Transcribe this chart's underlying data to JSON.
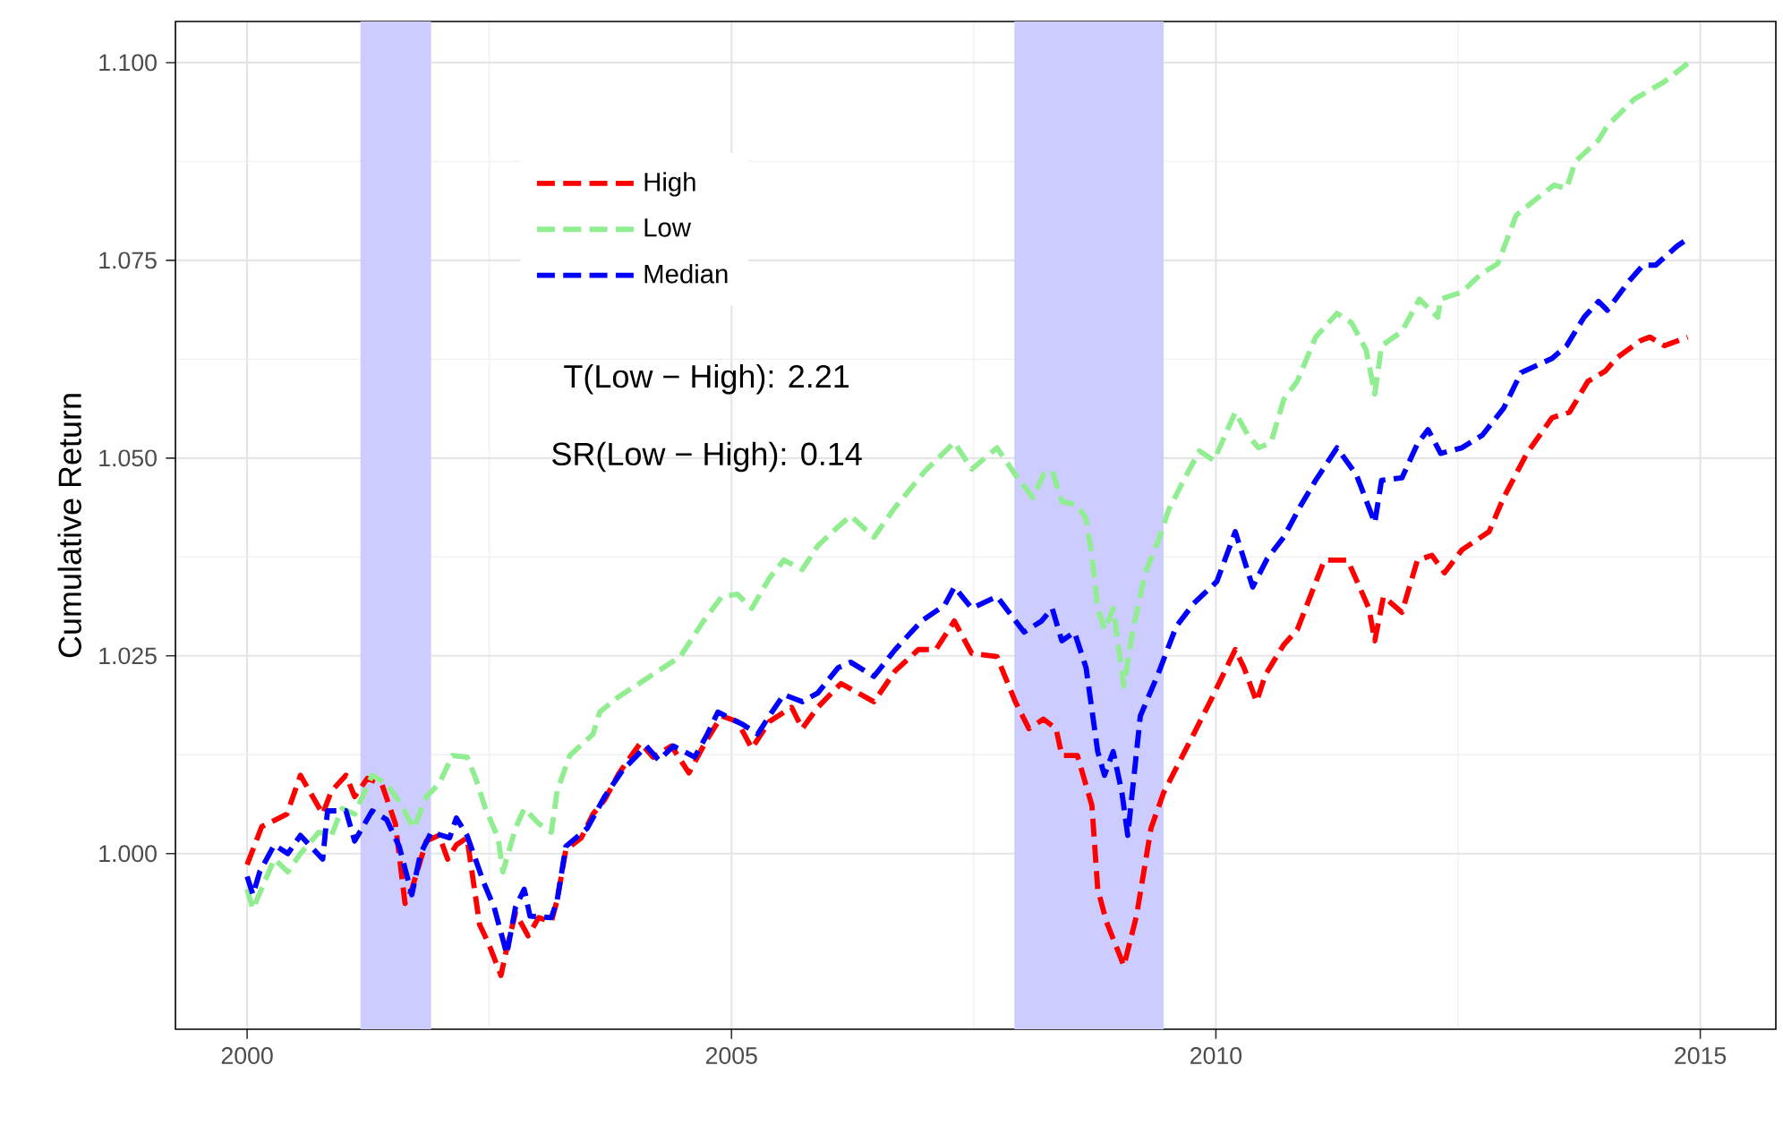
{
  "chart_data": {
    "type": "line",
    "ylabel": "Cumulative Return",
    "xlim": [
      1999.26,
      2015.78
    ],
    "ylim": [
      0.9778,
      1.1052
    ],
    "xticks": [
      2000,
      2005,
      2010,
      2015
    ],
    "yticks": [
      {
        "value": 1.0,
        "label": "1.000"
      },
      {
        "value": 1.025,
        "label": "1.025"
      },
      {
        "value": 1.05,
        "label": "1.050"
      },
      {
        "value": 1.075,
        "label": "1.075"
      },
      {
        "value": 1.1,
        "label": "1.100"
      }
    ],
    "grid": true,
    "legend": "top left",
    "line_style": "dashed",
    "marker": "none",
    "bands": [
      {
        "axis": "x",
        "from": 2001.17,
        "to": 2001.9,
        "color": "#ccccff"
      },
      {
        "axis": "x",
        "from": 2007.92,
        "to": 2009.46,
        "color": "#ccccff"
      }
    ],
    "annotations": [
      "T(Low − High): 2.21",
      "SR(Low − High): 0.14"
    ],
    "series": [
      {
        "name": "High",
        "color": "#ff0000",
        "x": [
          2000.0,
          2000.15,
          2000.41,
          2000.55,
          2000.78,
          2000.87,
          2001.02,
          2001.11,
          2001.24,
          2001.39,
          2001.53,
          2001.63,
          2001.7,
          2001.85,
          2001.98,
          2002.07,
          2002.16,
          2002.27,
          2002.4,
          2002.49,
          2002.62,
          2002.68,
          2002.77,
          2002.9,
          2003.01,
          2003.14,
          2003.2,
          2003.29,
          2003.45,
          2003.57,
          2003.69,
          2003.84,
          2004.06,
          2004.19,
          2004.38,
          2004.56,
          2004.75,
          2004.9,
          2005.06,
          2005.21,
          2005.39,
          2005.62,
          2005.73,
          2005.89,
          2006.13,
          2006.47,
          2006.69,
          2006.93,
          2007.11,
          2007.3,
          2007.48,
          2007.74,
          2007.93,
          2008.07,
          2008.22,
          2008.35,
          2008.41,
          2008.57,
          2008.72,
          2008.78,
          2008.87,
          2009.05,
          2009.18,
          2009.33,
          2009.46,
          2009.77,
          2009.96,
          2010.2,
          2010.29,
          2010.42,
          2010.51,
          2010.7,
          2010.84,
          2011.12,
          2011.36,
          2011.58,
          2011.64,
          2011.73,
          2011.92,
          2012.08,
          2012.23,
          2012.36,
          2012.54,
          2012.82,
          2012.97,
          2013.21,
          2013.47,
          2013.65,
          2013.84,
          2014.02,
          2014.13,
          2014.39,
          2014.48,
          2014.63,
          2014.87
        ],
        "values": [
          0.9986,
          1.0034,
          1.005,
          1.0099,
          1.005,
          1.0079,
          1.0099,
          1.0072,
          1.0095,
          1.0088,
          1.0038,
          0.9937,
          0.9955,
          1.0016,
          1.0023,
          0.9993,
          1.0011,
          1.002,
          0.991,
          0.9887,
          0.9846,
          0.988,
          0.9925,
          0.9896,
          0.9919,
          0.9914,
          0.9941,
          1.0005,
          1.002,
          1.005,
          1.0068,
          1.0102,
          1.014,
          1.0122,
          1.0136,
          1.0102,
          1.0145,
          1.0174,
          1.0167,
          1.0133,
          1.0167,
          1.0185,
          1.0158,
          1.0185,
          1.0215,
          1.0192,
          1.0231,
          1.0258,
          1.0258,
          1.0294,
          1.0253,
          1.0249,
          1.0192,
          1.0158,
          1.017,
          1.0158,
          1.0124,
          1.0124,
          1.0061,
          0.9955,
          0.9914,
          0.9858,
          0.9921,
          1.0032,
          1.0077,
          1.0151,
          1.0197,
          1.0258,
          1.0235,
          1.0192,
          1.0226,
          1.0264,
          1.0283,
          1.0371,
          1.0371,
          1.031,
          1.0269,
          1.0325,
          1.0305,
          1.0371,
          1.0377,
          1.0355,
          1.0384,
          1.0407,
          1.045,
          1.0506,
          1.0551,
          1.0558,
          1.0597,
          1.061,
          1.0626,
          1.0649,
          1.0653,
          1.0642,
          1.0653
        ]
      },
      {
        "name": "Low",
        "color": "#90ee90",
        "x": [
          2000.0,
          2000.06,
          2000.28,
          2000.42,
          2000.55,
          2000.74,
          2000.87,
          2000.98,
          2001.11,
          2001.29,
          2001.44,
          2001.57,
          2001.72,
          2001.85,
          2001.98,
          2002.12,
          2002.27,
          2002.36,
          2002.46,
          2002.59,
          2002.64,
          2002.77,
          2002.86,
          2003.01,
          2003.14,
          2003.2,
          2003.33,
          2003.57,
          2003.64,
          2003.82,
          2004.47,
          2004.71,
          2004.9,
          2005.06,
          2005.21,
          2005.39,
          2005.54,
          2005.73,
          2005.89,
          2006.08,
          2006.23,
          2006.47,
          2006.69,
          2007.0,
          2007.3,
          2007.48,
          2007.74,
          2007.93,
          2008.11,
          2008.22,
          2008.31,
          2008.41,
          2008.57,
          2008.66,
          2008.72,
          2008.78,
          2008.85,
          2008.94,
          2009.05,
          2009.14,
          2009.27,
          2009.4,
          2009.51,
          2009.68,
          2009.83,
          2009.98,
          2010.2,
          2010.33,
          2010.44,
          2010.57,
          2010.7,
          2010.84,
          2011.03,
          2011.25,
          2011.4,
          2011.55,
          2011.64,
          2011.71,
          2011.92,
          2012.1,
          2012.29,
          2012.32,
          2012.54,
          2012.73,
          2012.91,
          2013.1,
          2013.28,
          2013.49,
          2013.62,
          2013.71,
          2013.95,
          2014.04,
          2014.32,
          2014.48,
          2014.63,
          2014.87
        ],
        "values": [
          0.9955,
          0.993,
          0.9993,
          0.9977,
          1.0,
          1.0027,
          1.0023,
          1.0057,
          1.005,
          1.0099,
          1.0088,
          1.0066,
          1.0032,
          1.0072,
          1.0088,
          1.0124,
          1.0122,
          1.0095,
          1.0057,
          1.002,
          0.9977,
          1.0032,
          1.0057,
          1.0038,
          1.0027,
          1.0079,
          1.0124,
          1.0151,
          1.0179,
          1.0197,
          1.0249,
          1.0294,
          1.0325,
          1.0328,
          1.031,
          1.0348,
          1.0371,
          1.0359,
          1.0389,
          1.0411,
          1.0427,
          1.04,
          1.0438,
          1.0484,
          1.052,
          1.0486,
          1.0513,
          1.0479,
          1.045,
          1.0479,
          1.0484,
          1.0445,
          1.0441,
          1.0423,
          1.0377,
          1.031,
          1.0283,
          1.031,
          1.0212,
          1.028,
          1.0355,
          1.0393,
          1.0434,
          1.0475,
          1.0509,
          1.0497,
          1.0558,
          1.0529,
          1.0513,
          1.052,
          1.0574,
          1.0597,
          1.0653,
          1.0683,
          1.0671,
          1.0637,
          1.0581,
          1.0642,
          1.066,
          1.0701,
          1.0678,
          1.0701,
          1.071,
          1.0732,
          1.0746,
          1.0807,
          1.0825,
          1.0845,
          1.0841,
          1.0875,
          1.0902,
          1.092,
          1.0954,
          1.0965,
          1.0976,
          1.0999
        ]
      },
      {
        "name": "Median",
        "color": "#0000ff",
        "x": [
          2000.0,
          2000.06,
          2000.13,
          2000.28,
          2000.42,
          2000.55,
          2000.78,
          2000.83,
          2001.02,
          2001.11,
          2001.29,
          2001.44,
          2001.57,
          2001.7,
          2001.79,
          2001.9,
          2002.09,
          2002.16,
          2002.27,
          2002.44,
          2002.55,
          2002.68,
          2002.77,
          2002.86,
          2002.92,
          2003.14,
          2003.2,
          2003.29,
          2003.51,
          2003.69,
          2003.88,
          2004.12,
          2004.25,
          2004.4,
          2004.62,
          2004.75,
          2004.86,
          2005.12,
          2005.27,
          2005.39,
          2005.54,
          2005.73,
          2005.89,
          2006.1,
          2006.23,
          2006.47,
          2006.69,
          2006.96,
          2007.2,
          2007.3,
          2007.48,
          2007.74,
          2008.02,
          2008.2,
          2008.31,
          2008.41,
          2008.54,
          2008.66,
          2008.78,
          2008.85,
          2008.94,
          2009.03,
          2009.09,
          2009.22,
          2009.4,
          2009.59,
          2009.77,
          2010.01,
          2010.2,
          2010.38,
          2010.53,
          2010.7,
          2010.88,
          2011.03,
          2011.25,
          2011.45,
          2011.64,
          2011.71,
          2011.92,
          2012.08,
          2012.19,
          2012.32,
          2012.54,
          2012.75,
          2012.97,
          2013.15,
          2013.47,
          2013.62,
          2013.8,
          2013.95,
          2014.04,
          2014.26,
          2014.41,
          2014.54,
          2014.76,
          2014.87
        ],
        "values": [
          0.9971,
          0.9948,
          0.9977,
          1.0011,
          1.0,
          1.0023,
          0.9993,
          1.0054,
          1.0054,
          1.0016,
          1.0054,
          1.0043,
          1.0009,
          0.9948,
          1.0,
          1.0027,
          1.002,
          1.0045,
          1.0023,
          0.9964,
          0.9932,
          0.9873,
          0.9932,
          0.9955,
          0.9921,
          0.9919,
          0.9941,
          1.0009,
          1.0032,
          1.0072,
          1.0106,
          1.0136,
          1.0118,
          1.0136,
          1.0122,
          1.0151,
          1.0179,
          1.0163,
          1.0151,
          1.0174,
          1.0201,
          1.0192,
          1.0203,
          1.0235,
          1.0242,
          1.0224,
          1.0258,
          1.0294,
          1.0314,
          1.0337,
          1.031,
          1.0325,
          1.028,
          1.0294,
          1.031,
          1.0269,
          1.028,
          1.0235,
          1.0129,
          1.0099,
          1.0129,
          1.0077,
          1.0023,
          1.0174,
          1.0226,
          1.0287,
          1.0316,
          1.0344,
          1.0407,
          1.0337,
          1.0373,
          1.04,
          1.0441,
          1.0472,
          1.0513,
          1.0479,
          1.0418,
          1.0472,
          1.0475,
          1.0518,
          1.0536,
          1.0506,
          1.0513,
          1.0529,
          1.0563,
          1.0608,
          1.0626,
          1.0642,
          1.0678,
          1.0698,
          1.0687,
          1.0723,
          1.0744,
          1.0744,
          1.0768,
          1.0777
        ]
      }
    ]
  }
}
